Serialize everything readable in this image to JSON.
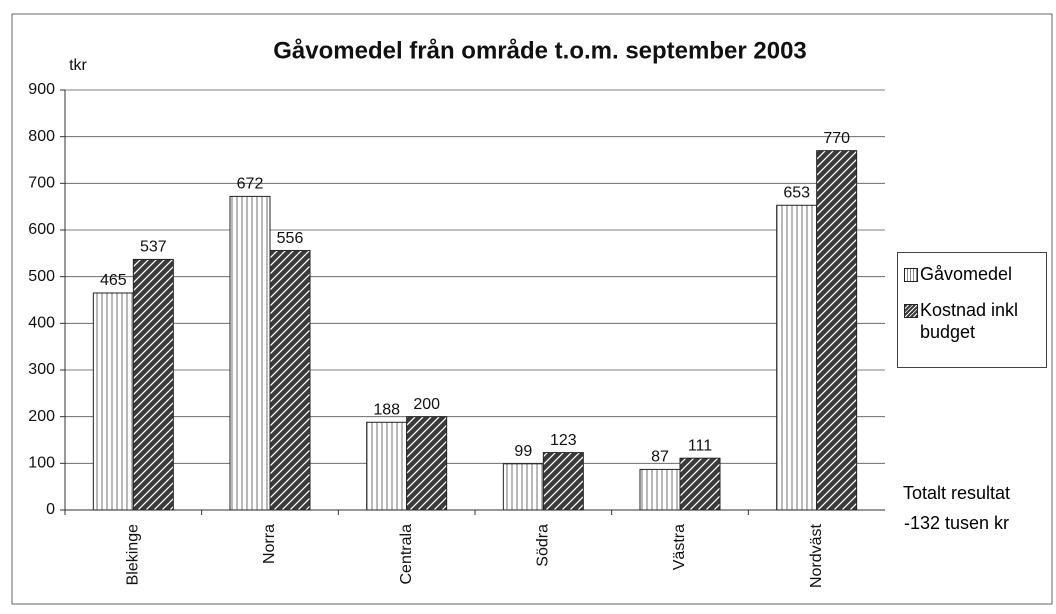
{
  "chart_data": {
    "type": "bar",
    "title": "Gåvomedel från område t.o.m. september 2003",
    "y_label": "tkr",
    "categories": [
      "Blekinge",
      "Norra",
      "Centrala",
      "Södra",
      "Västra",
      "Nordväst"
    ],
    "series": [
      {
        "name": "Gåvomedel",
        "color": "#ffffff",
        "values": [
          465,
          672,
          188,
          99,
          87,
          653
        ]
      },
      {
        "name": "Kostnad inkl budget",
        "color": "#3a3a3a",
        "values": [
          537,
          556,
          200,
          123,
          111,
          770
        ]
      }
    ],
    "ylim": [
      0,
      900
    ],
    "yticks": [
      0,
      100,
      200,
      300,
      400,
      500,
      600,
      700,
      800,
      900
    ],
    "grid": true,
    "legend": "right",
    "annotation": "Totalt resultat\n-132 tusen kr"
  }
}
